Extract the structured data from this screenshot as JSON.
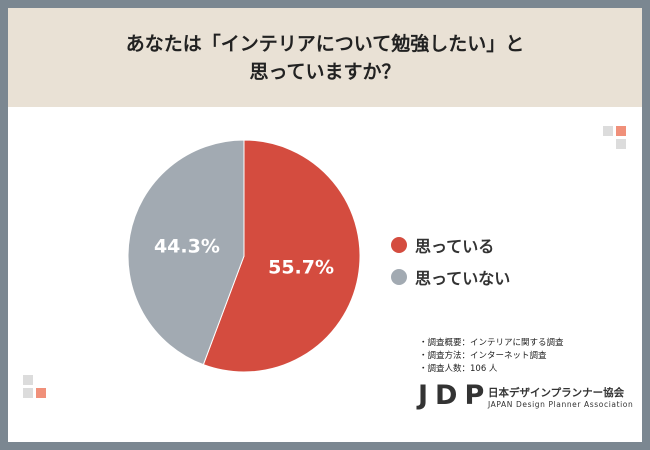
{
  "title": {
    "line1": "あなたは「インテリアについて勉強したい」と",
    "line2": "思っていますか？"
  },
  "colors": {
    "background": "#7b8791",
    "header": "#e9e1d5",
    "series_yes": "#d44c3f",
    "series_no": "#a2aab2",
    "deco_light": "#dcdcdc",
    "deco_accent": "#f0907a"
  },
  "chart_data": {
    "type": "pie",
    "slices": [
      {
        "label": "思っている",
        "value": 55.7,
        "display": "55.7%",
        "color": "#d44c3f"
      },
      {
        "label": "思っていない",
        "value": 44.3,
        "display": "44.3%",
        "color": "#a2aab2"
      }
    ],
    "legend": [
      "思っている",
      "思っていない"
    ],
    "legend_position": "right"
  },
  "notes": [
    "・調査概要：インテリアに関する調査",
    "・調査方法：インターネット調査",
    "・調査人数：106 人"
  ],
  "logo": {
    "mark": "JDP",
    "name_ja": "日本デザインプランナー協会",
    "name_en": "JAPAN Design Planner Association"
  }
}
